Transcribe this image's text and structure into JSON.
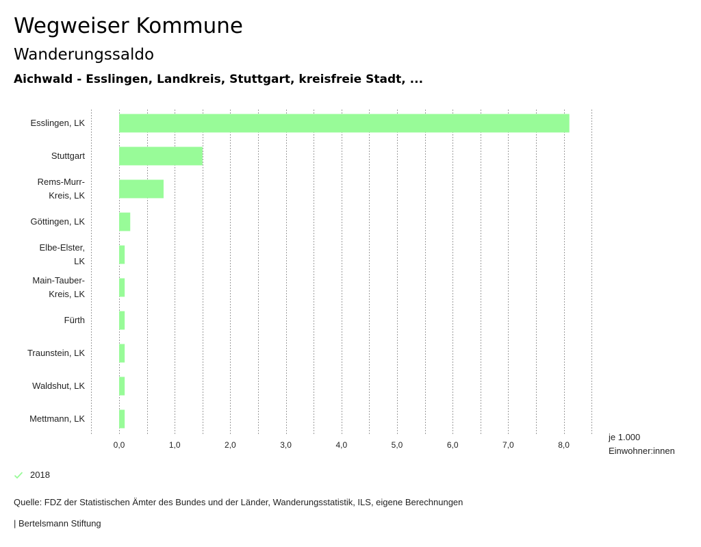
{
  "header": {
    "title": "Wegweiser Kommune",
    "subtitle": "Wanderungssaldo",
    "context": "Aichwald - Esslingen, Landkreis, Stuttgart, kreisfreie Stadt, ..."
  },
  "chart_data": {
    "type": "bar",
    "orientation": "horizontal",
    "categories": [
      [
        "Esslingen, LK"
      ],
      [
        "Stuttgart"
      ],
      [
        "Rems-Murr-",
        "Kreis, LK"
      ],
      [
        "Göttingen, LK"
      ],
      [
        "Elbe-Elster,",
        "LK"
      ],
      [
        "Main-Tauber-",
        "Kreis, LK"
      ],
      [
        "Fürth"
      ],
      [
        "Traunstein, LK"
      ],
      [
        "Waldshut, LK"
      ],
      [
        "Mettmann, LK"
      ]
    ],
    "series": [
      {
        "name": "2018",
        "values": [
          8.1,
          1.5,
          0.8,
          0.2,
          0.1,
          0.1,
          0.1,
          0.1,
          0.1,
          0.1
        ]
      }
    ],
    "xlim": [
      -0.5,
      8.5
    ],
    "xticks": [
      0,
      1,
      2,
      3,
      4,
      5,
      6,
      7,
      8
    ],
    "xtick_labels": [
      "0,0",
      "1,0",
      "2,0",
      "3,0",
      "4,0",
      "5,0",
      "6,0",
      "7,0",
      "8,0"
    ],
    "xunit": [
      "je 1.000",
      "Einwohner:innen"
    ],
    "grid": true,
    "grid_step": 0.5,
    "bar_color": "#98fb98",
    "legend_position": "bottom-left"
  },
  "footer": {
    "legend_label": "2018",
    "source": "Quelle: FDZ der Statistischen Ämter des Bundes und der Länder, Wanderungsstatistik, ILS, eigene Berechnungen",
    "credit": "| Bertelsmann Stiftung"
  }
}
